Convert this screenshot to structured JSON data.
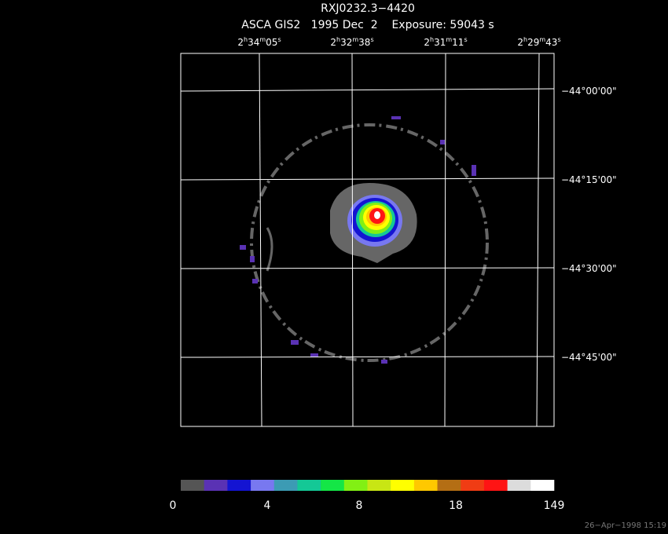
{
  "title": "RXJ0232.3−4420",
  "subtitle": "ASCA GIS2   1995 Dec  2    Exposure: 59043 s",
  "ra_units": [
    "h",
    "m",
    "s"
  ],
  "ra_labels": [
    {
      "h": "2",
      "m": "34",
      "s": "05"
    },
    {
      "h": "2",
      "m": "32",
      "s": "38"
    },
    {
      "h": "2",
      "m": "31",
      "s": "11"
    },
    {
      "h": "2",
      "m": "29",
      "s": "43"
    }
  ],
  "dec_labels": [
    "−44°00'00\"",
    "−44°15'00\"",
    "−44°30'00\"",
    "−44°45'00\""
  ],
  "colorbar": {
    "colors": [
      "#555555",
      "#5a32b4",
      "#1414d2",
      "#7878f0",
      "#3c9bb4",
      "#14c896",
      "#14e646",
      "#82f014",
      "#c8e614",
      "#ffff00",
      "#ffc800",
      "#b46e14",
      "#f03c14",
      "#ff1414",
      "#dcdcdc",
      "#ffffff"
    ],
    "labels": [
      "0",
      "4",
      "8",
      "18",
      "149"
    ]
  },
  "timestamp": "26−Apr−1998 15:19"
}
